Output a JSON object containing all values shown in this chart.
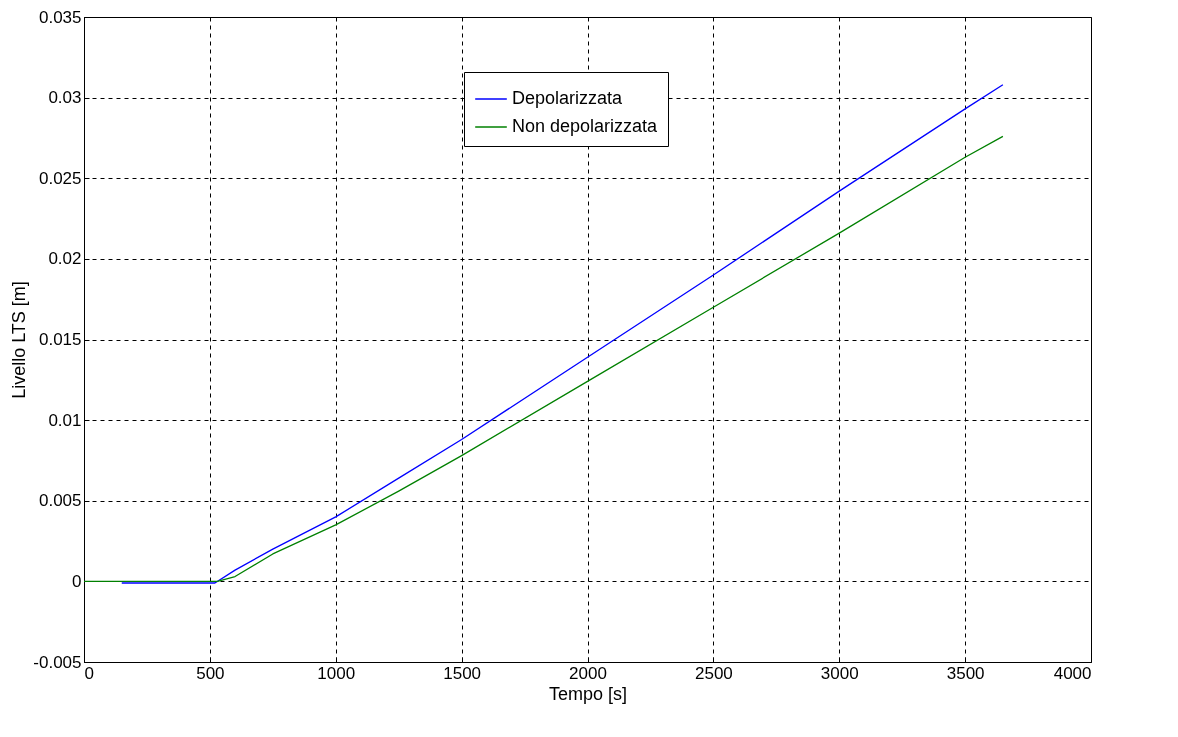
{
  "chart_data": {
    "type": "line",
    "xlabel": "Tempo [s]",
    "ylabel": "Livello LTS [m]",
    "xlim": [
      0,
      4000
    ],
    "xticks": [
      0,
      500,
      1000,
      1500,
      2000,
      2500,
      3000,
      3500,
      4000
    ],
    "ylim": [
      -0.005,
      0.035
    ],
    "yticks": [
      -0.005,
      0,
      0.005,
      0.01,
      0.015,
      0.02,
      0.025,
      0.03,
      0.035
    ],
    "grid": true,
    "legend": "top right",
    "line_style": "solid",
    "series": [
      {
        "name": "Depolarizzata",
        "color": "#0000ff",
        "x": [
          150,
          520,
          600,
          750,
          1000,
          1250,
          1500,
          2000,
          2500,
          3000,
          3500,
          3650
        ],
        "values": [
          -0.0001,
          -0.0001,
          0.0007,
          0.002,
          0.004,
          0.0064,
          0.0088,
          0.0139,
          0.019,
          0.0242,
          0.0293,
          0.0308
        ]
      },
      {
        "name": "Non depolarizzata",
        "color": "#008000",
        "x": [
          0,
          530,
          600,
          750,
          1000,
          1250,
          1500,
          2000,
          2500,
          3000,
          3500,
          3650
        ],
        "values": [
          0,
          0,
          0.0003,
          0.0017,
          0.0035,
          0.0056,
          0.0078,
          0.0124,
          0.017,
          0.0216,
          0.0263,
          0.0276
        ]
      }
    ]
  }
}
